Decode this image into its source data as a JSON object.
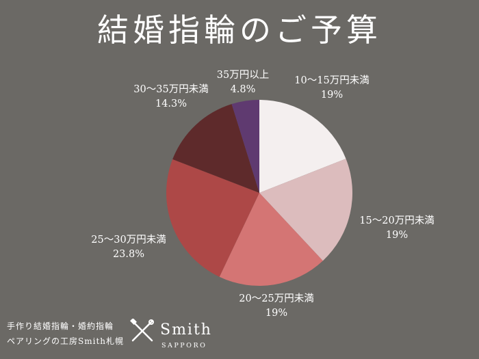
{
  "chart_data": {
    "type": "pie",
    "title": "結婚指輪のご予算",
    "start_angle_deg": 0,
    "direction": "clockwise",
    "slices": [
      {
        "label": "10〜15万円未満",
        "value": 19,
        "value_label": "19%",
        "color": "#f4efef"
      },
      {
        "label": "15〜20万円未満",
        "value": 19,
        "value_label": "19%",
        "color": "#dcbcbd"
      },
      {
        "label": "20〜25万円未満",
        "value": 19,
        "value_label": "19%",
        "color": "#d47574"
      },
      {
        "label": "25〜30万円未満",
        "value": 23.8,
        "value_label": "23.8%",
        "color": "#ad4847"
      },
      {
        "label": "30〜35万円未満",
        "value": 14.3,
        "value_label": "14.3%",
        "color": "#5e2a2b"
      },
      {
        "label": "35万円以上",
        "value": 4.8,
        "value_label": "4.8%",
        "color": "#5f3a70"
      }
    ]
  },
  "background_color": "#6b6965",
  "footer": {
    "line1": "手作り結婚指輪・婚約指輪",
    "line2": "ペアリングの工房Smith札幌"
  },
  "brand": {
    "name": "Smith",
    "sub": "SAPPORO",
    "logo_icon": "crossed-tools-icon"
  }
}
